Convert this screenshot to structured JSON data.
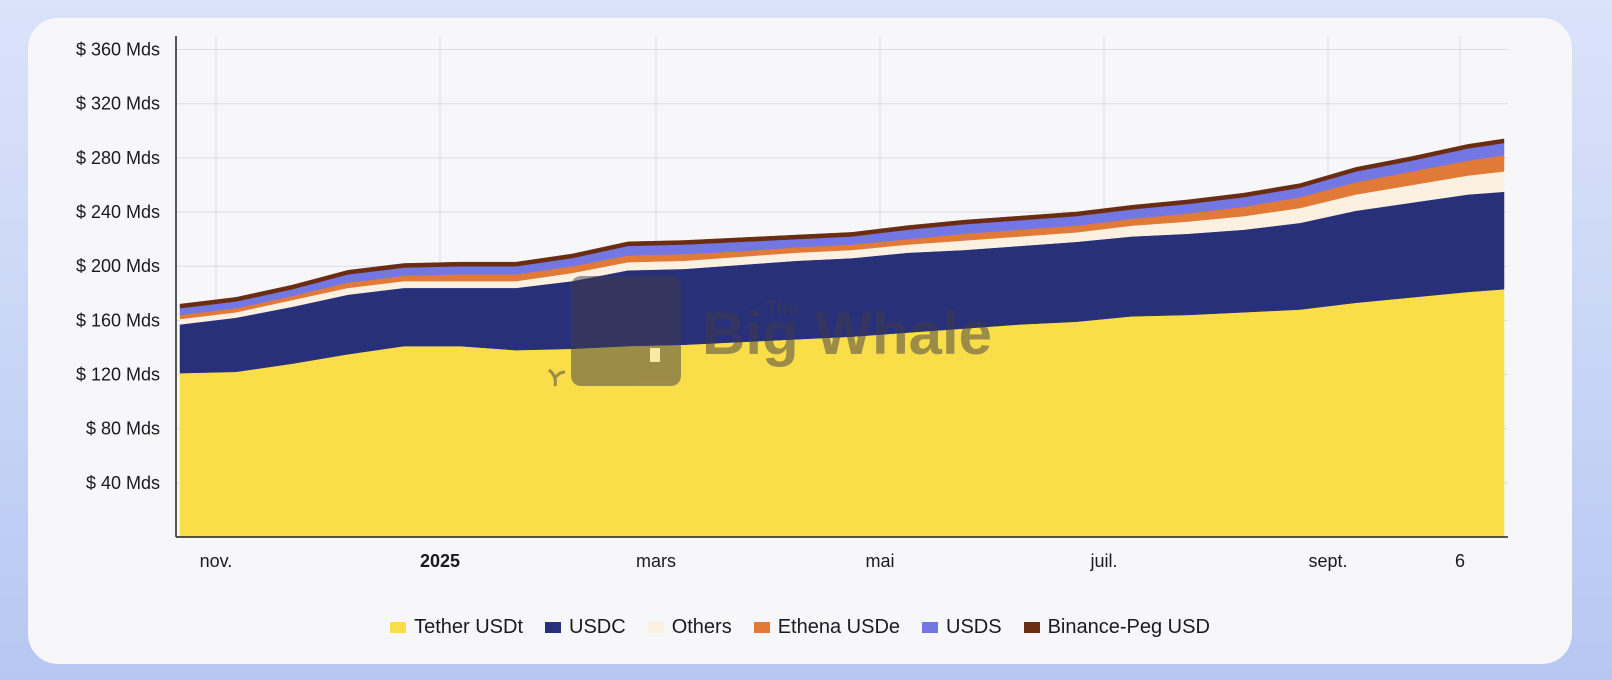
{
  "chart_data": {
    "type": "area",
    "stacked": true,
    "title": "",
    "xlabel": "",
    "ylabel": "",
    "ylim": [
      0,
      370
    ],
    "y_ticks": [
      40,
      80,
      120,
      160,
      200,
      240,
      280,
      320,
      360
    ],
    "y_tick_labels": [
      "$ 40 Mds",
      "$ 80 Mds",
      "$ 120 Mds",
      "$ 160 Mds",
      "$ 200 Mds",
      "$ 240 Mds",
      "$ 280 Mds",
      "$ 320 Mds",
      "$ 360 Mds"
    ],
    "xlim": [
      -1,
      332
    ],
    "x_ticks": [
      {
        "x": 9,
        "label": "nov.",
        "bold": false
      },
      {
        "x": 65,
        "label": "2025",
        "bold": true
      },
      {
        "x": 119,
        "label": "mars",
        "bold": false
      },
      {
        "x": 175,
        "label": "mai",
        "bold": false
      },
      {
        "x": 231,
        "label": "juil.",
        "bold": false
      },
      {
        "x": 287,
        "label": "sept.",
        "bold": false
      },
      {
        "x": 320,
        "label": "6",
        "bold": false
      }
    ],
    "x_unit": "days since 2024-10-23",
    "x": [
      0,
      14,
      28,
      42,
      56,
      70,
      84,
      98,
      112,
      126,
      140,
      154,
      168,
      182,
      196,
      210,
      224,
      238,
      252,
      266,
      280,
      294,
      308,
      322,
      331
    ],
    "series": [
      {
        "name": "Tether USDt",
        "color": "#f9de4a",
        "values": [
          121,
          122,
          128,
          135,
          141,
          141,
          138,
          139,
          141,
          142,
          144,
          146,
          148,
          151,
          154,
          157,
          159,
          163,
          164,
          166,
          168,
          173,
          177,
          181,
          183
        ]
      },
      {
        "name": "USDC",
        "color": "#29307a",
        "values": [
          36,
          40,
          42,
          44,
          43,
          43,
          46,
          50,
          56,
          56,
          57,
          58,
          58,
          59,
          58,
          58,
          59,
          59,
          60,
          61,
          64,
          68,
          70,
          72,
          72
        ]
      },
      {
        "name": "Others",
        "color": "#fcf0e0",
        "values": [
          4,
          4,
          5,
          5,
          5,
          5,
          5,
          6,
          6,
          6,
          6,
          6,
          6,
          6,
          7,
          7,
          7,
          8,
          9,
          10,
          11,
          12,
          13,
          14,
          15
        ]
      },
      {
        "name": "Ethena USDe",
        "color": "#e27a37",
        "values": [
          3,
          3,
          3,
          4,
          4,
          5,
          5,
          5,
          5,
          5,
          4,
          4,
          4,
          4,
          5,
          5,
          5,
          5,
          6,
          7,
          8,
          9,
          10,
          11,
          12
        ]
      },
      {
        "name": "USDS",
        "color": "#7277e4",
        "values": [
          5,
          5,
          5,
          6,
          6,
          6,
          6,
          6,
          7,
          7,
          7,
          6,
          6,
          7,
          7,
          7,
          7,
          7,
          7,
          7,
          7,
          8,
          8,
          9,
          9
        ]
      },
      {
        "name": "Binance-Peg USD",
        "color": "#6a2d12",
        "values": [
          3,
          3,
          3,
          3,
          3,
          3,
          3,
          3,
          3,
          3,
          3,
          3,
          3,
          3,
          3,
          3,
          3,
          3,
          3,
          3,
          3,
          3,
          3,
          3,
          3
        ]
      }
    ]
  },
  "watermark": {
    "small": "The",
    "large": "Big Whale"
  },
  "colors": {
    "card_bg": "#f7f7f9",
    "grid": "#dcdce4",
    "axis": "#222222"
  }
}
